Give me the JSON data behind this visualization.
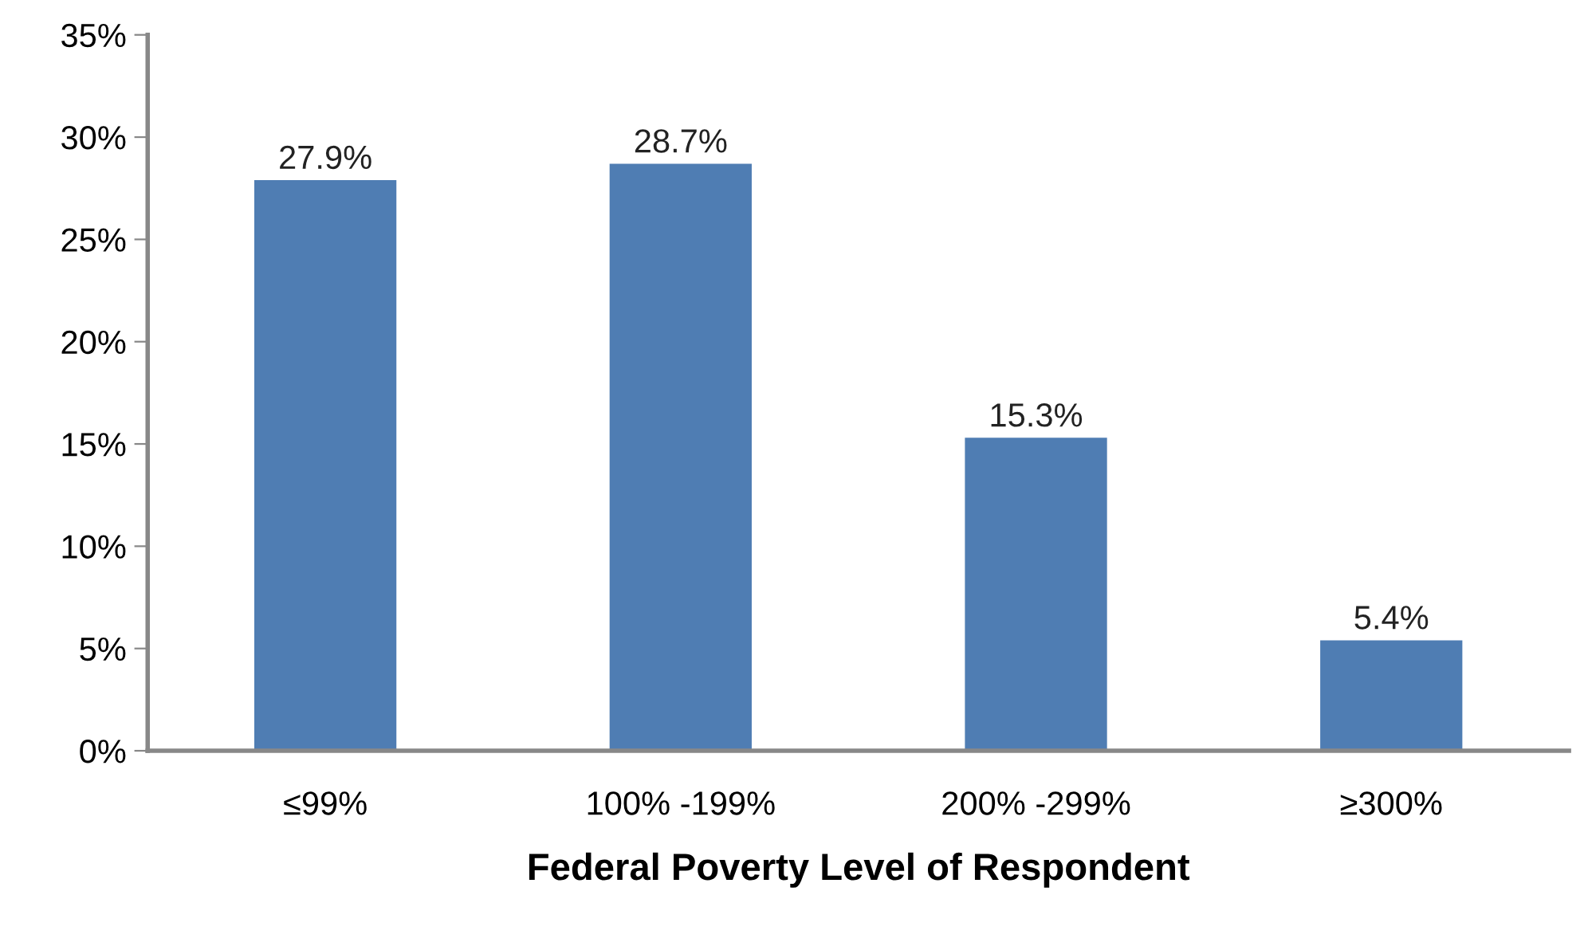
{
  "chart_data": {
    "type": "bar",
    "xlabel": "Federal Poverty Level of Respondent",
    "categories": [
      "≤99%",
      "100% -199%",
      "200% -299%",
      "≥300%"
    ],
    "values": [
      27.9,
      28.7,
      15.3,
      5.4
    ],
    "value_labels": [
      "27.9%",
      "28.7%",
      "15.3%",
      "5.4%"
    ],
    "color": "#4f7db3",
    "ylim": [
      0,
      35
    ],
    "yticks": [
      {
        "value": 0,
        "label": "0%"
      },
      {
        "value": 5,
        "label": "5%"
      },
      {
        "value": 10,
        "label": "10%"
      },
      {
        "value": 15,
        "label": "15%"
      },
      {
        "value": 20,
        "label": "20%"
      },
      {
        "value": 25,
        "label": "25%"
      },
      {
        "value": 30,
        "label": "30%"
      },
      {
        "value": 35,
        "label": "35%"
      }
    ],
    "grid": false,
    "legend": false
  }
}
